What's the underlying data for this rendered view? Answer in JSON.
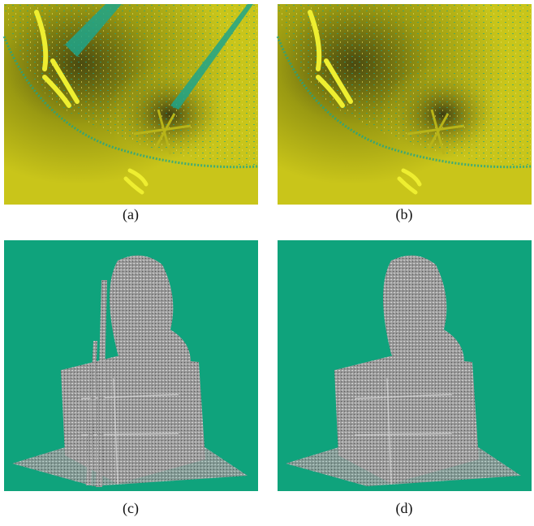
{
  "figure": {
    "panels": [
      {
        "label": "(a)"
      },
      {
        "label": "(b)"
      },
      {
        "label": "(c)"
      },
      {
        "label": "(d)"
      }
    ]
  }
}
